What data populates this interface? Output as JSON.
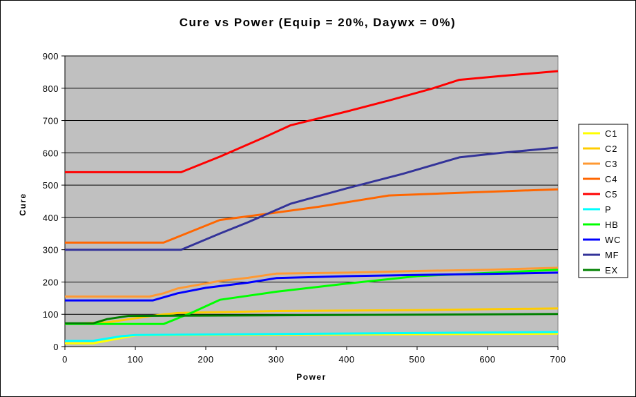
{
  "chart_data": {
    "type": "line",
    "title": "Cure vs Power (Equip = 20%, Daywx = 0%)",
    "xlabel": "Power",
    "ylabel": "Cure",
    "xlim": [
      0,
      700
    ],
    "ylim": [
      0,
      900
    ],
    "x_ticks": [
      "0",
      "100",
      "200",
      "300",
      "400",
      "500",
      "600",
      "700"
    ],
    "y_ticks": [
      "0",
      "100",
      "200",
      "300",
      "400",
      "500",
      "600",
      "700",
      "800",
      "900"
    ],
    "grid": "horizontal",
    "plot_background": "#c0c0c0",
    "legend_position": "right",
    "series": [
      {
        "name": "C1",
        "color": "#ffff00",
        "points": [
          [
            0,
            10
          ],
          [
            40,
            10
          ],
          [
            100,
            35
          ],
          [
            700,
            40
          ]
        ]
      },
      {
        "name": "C2",
        "color": "#ffcc00",
        "points": [
          [
            0,
            70
          ],
          [
            60,
            75
          ],
          [
            140,
            100
          ],
          [
            160,
            104
          ],
          [
            200,
            106
          ],
          [
            300,
            110
          ],
          [
            500,
            113
          ],
          [
            700,
            118
          ]
        ]
      },
      {
        "name": "C3",
        "color": "#ff9933",
        "points": [
          [
            0,
            155
          ],
          [
            120,
            155
          ],
          [
            140,
            165
          ],
          [
            160,
            180
          ],
          [
            180,
            188
          ],
          [
            220,
            203
          ],
          [
            260,
            213
          ],
          [
            300,
            226
          ],
          [
            400,
            229
          ],
          [
            500,
            234
          ],
          [
            600,
            238
          ],
          [
            700,
            244
          ]
        ]
      },
      {
        "name": "C4",
        "color": "#ff6600",
        "points": [
          [
            0,
            322
          ],
          [
            140,
            322
          ],
          [
            180,
            357
          ],
          [
            220,
            392
          ],
          [
            300,
            415
          ],
          [
            360,
            433
          ],
          [
            460,
            468
          ],
          [
            560,
            476
          ],
          [
            700,
            487
          ]
        ]
      },
      {
        "name": "C5",
        "color": "#ff0000",
        "points": [
          [
            0,
            540
          ],
          [
            165,
            540
          ],
          [
            220,
            588
          ],
          [
            280,
            645
          ],
          [
            320,
            685
          ],
          [
            400,
            728
          ],
          [
            460,
            762
          ],
          [
            520,
            798
          ],
          [
            560,
            826
          ],
          [
            620,
            838
          ],
          [
            700,
            853
          ]
        ]
      },
      {
        "name": "P",
        "color": "#00ffff",
        "points": [
          [
            0,
            18
          ],
          [
            40,
            18
          ],
          [
            80,
            32
          ],
          [
            100,
            36
          ],
          [
            700,
            45
          ]
        ]
      },
      {
        "name": "HB",
        "color": "#00ff00",
        "points": [
          [
            0,
            70
          ],
          [
            140,
            70
          ],
          [
            180,
            105
          ],
          [
            220,
            145
          ],
          [
            300,
            170
          ],
          [
            400,
            195
          ],
          [
            500,
            218
          ],
          [
            600,
            228
          ],
          [
            700,
            238
          ]
        ]
      },
      {
        "name": "WC",
        "color": "#0000ff",
        "points": [
          [
            0,
            143
          ],
          [
            125,
            143
          ],
          [
            160,
            165
          ],
          [
            200,
            182
          ],
          [
            260,
            198
          ],
          [
            300,
            212
          ],
          [
            400,
            218
          ],
          [
            500,
            222
          ],
          [
            600,
            225
          ],
          [
            700,
            229
          ]
        ]
      },
      {
        "name": "MF",
        "color": "#333399",
        "points": [
          [
            0,
            300
          ],
          [
            165,
            300
          ],
          [
            220,
            350
          ],
          [
            260,
            385
          ],
          [
            320,
            442
          ],
          [
            400,
            490
          ],
          [
            480,
            535
          ],
          [
            560,
            586
          ],
          [
            620,
            600
          ],
          [
            700,
            616
          ]
        ]
      },
      {
        "name": "EX",
        "color": "#008000",
        "points": [
          [
            0,
            72
          ],
          [
            40,
            72
          ],
          [
            60,
            85
          ],
          [
            90,
            95
          ],
          [
            700,
            101
          ]
        ]
      }
    ]
  }
}
